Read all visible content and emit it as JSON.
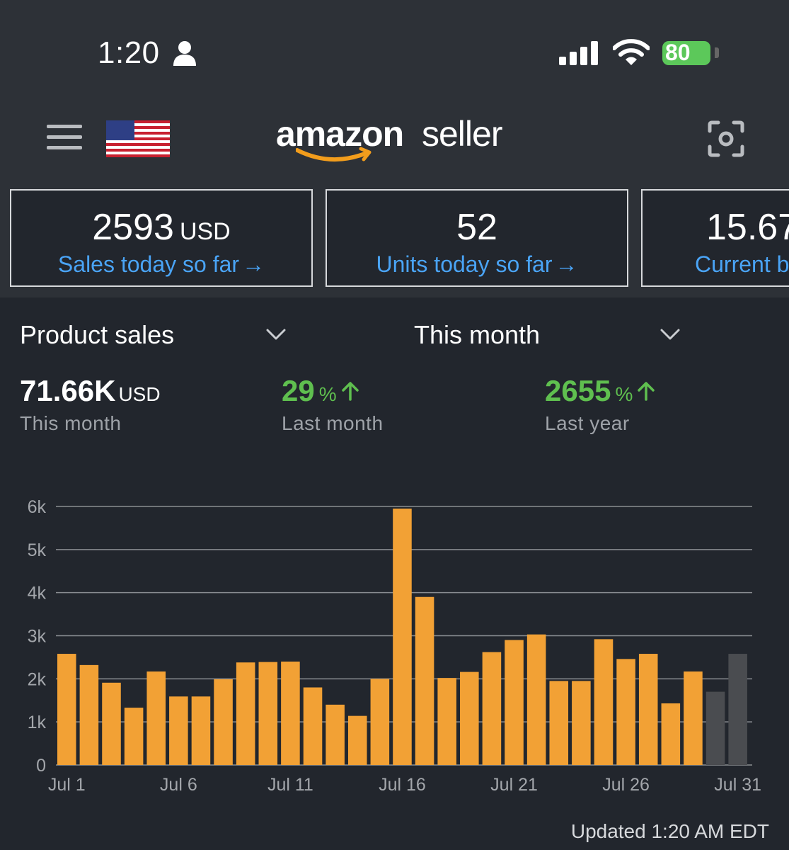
{
  "status": {
    "time": "1:20",
    "battery": "80"
  },
  "header": {
    "logo_main": "amazon",
    "logo_sub": "seller"
  },
  "cards": [
    {
      "value": "2593",
      "unit": "USD",
      "label": "Sales today so far",
      "arrow": "→"
    },
    {
      "value": "52",
      "unit": "",
      "label": "Units today so far",
      "arrow": "→"
    },
    {
      "value": "15.67",
      "unit": "",
      "label": "Current b",
      "arrow": ""
    }
  ],
  "filters": {
    "metric": "Product sales",
    "period": "This month"
  },
  "summary": {
    "total_value": "71.66K",
    "total_unit": "USD",
    "total_label": "This month",
    "last_month_value": "29",
    "last_month_pct": "%",
    "last_month_label": "Last month",
    "last_year_value": "2655",
    "last_year_pct": "%",
    "last_year_label": "Last year"
  },
  "chart_data": {
    "type": "bar",
    "title": "",
    "xlabel": "",
    "ylabel": "",
    "ylim": [
      0,
      6000
    ],
    "yticks": [
      "0",
      "1k",
      "2k",
      "3k",
      "4k",
      "5k",
      "6k"
    ],
    "xticks": [
      "Jul 1",
      "Jul 6",
      "Jul 11",
      "Jul 16",
      "Jul 21",
      "Jul 26",
      "Jul 31"
    ],
    "categories": [
      "Jul 1",
      "Jul 2",
      "Jul 3",
      "Jul 4",
      "Jul 5",
      "Jul 6",
      "Jul 7",
      "Jul 8",
      "Jul 9",
      "Jul 10",
      "Jul 11",
      "Jul 12",
      "Jul 13",
      "Jul 14",
      "Jul 15",
      "Jul 16",
      "Jul 17",
      "Jul 18",
      "Jul 19",
      "Jul 20",
      "Jul 21",
      "Jul 22",
      "Jul 23",
      "Jul 24",
      "Jul 25",
      "Jul 26",
      "Jul 27",
      "Jul 28",
      "Jul 29",
      "Jul 30",
      "Jul 31"
    ],
    "values": [
      2580,
      2320,
      1910,
      1330,
      2170,
      1590,
      1590,
      1990,
      2380,
      2390,
      2400,
      1800,
      1400,
      1140,
      2000,
      5950,
      3900,
      2020,
      2160,
      2620,
      2900,
      3030,
      1950,
      1950,
      2920,
      2460,
      2580,
      1430,
      2170,
      1700,
      2580
    ],
    "bar_color": "#f2a135",
    "projected_color": "#4a4c50",
    "projected_from_index": 29
  },
  "footer": {
    "updated": "Updated 1:20 AM EDT"
  }
}
